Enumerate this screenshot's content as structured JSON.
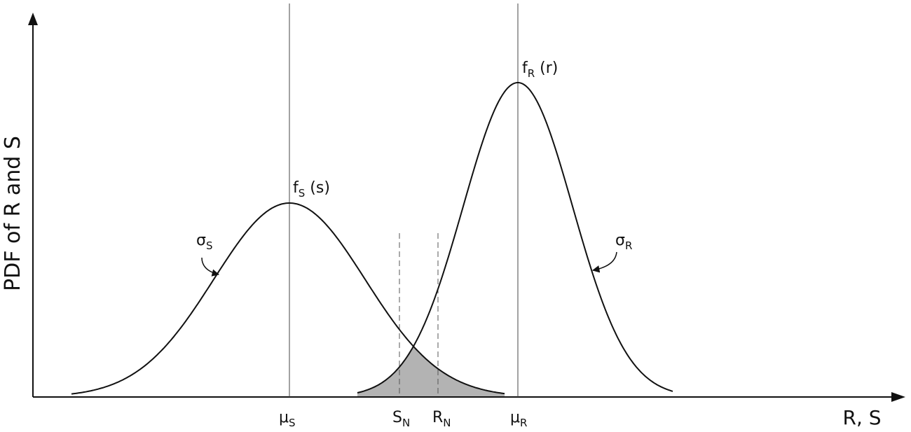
{
  "axes": {
    "y_label": "PDF of R and S",
    "x_label": "R, S"
  },
  "curves": [
    {
      "label": {
        "main": "f",
        "sub": "S",
        "tail": " (s)"
      },
      "spread": {
        "main": "σ",
        "sub": "S"
      }
    },
    {
      "label": {
        "main": "f",
        "sub": "R",
        "tail": " (r)"
      },
      "spread": {
        "main": "σ",
        "sub": "R"
      }
    }
  ],
  "markers": [
    {
      "main": "μ",
      "sub": "S"
    },
    {
      "main": "S",
      "sub": "N"
    },
    {
      "main": "R",
      "sub": "N"
    },
    {
      "main": "μ",
      "sub": "R"
    }
  ]
}
